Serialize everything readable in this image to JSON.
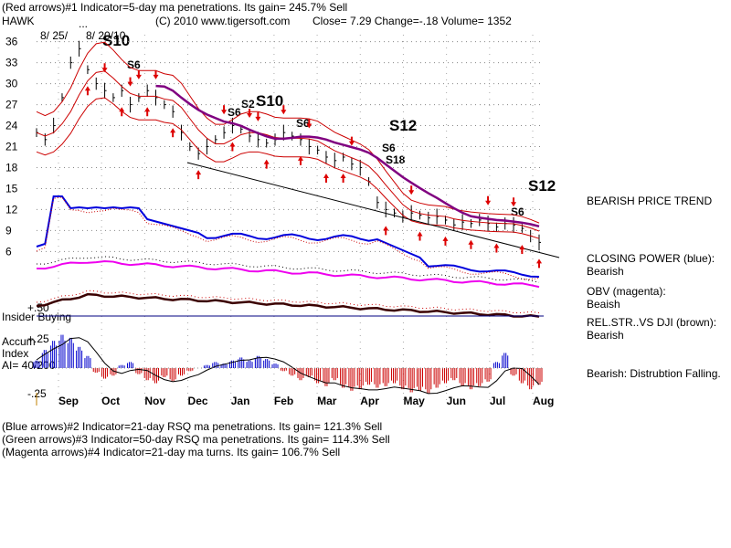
{
  "header": {
    "line1": "(Red arrows)#1 Indicator=5-day ma penetrations.  Its gain= 245.7% Sell",
    "line2_left": "HAWK",
    "line2_copy": "(C) 2010 www.tigersoft.com",
    "line2_close": "Close=  7.29   Change=-.18  Volume= 1352"
  },
  "footer": [
    "(Blue arrows)#2 Indicator=21-day RSQ ma penetrations.  Its gain= 121.3% Sell",
    "(Green arrows)#3 Indicator=50-day RSQ ma penetrations.  Its gain= 114.3% Sell",
    "(Magenta arrows)#4 Indicator=21-day ma turns.  Its gain= 106.7% Sell"
  ],
  "right_panel": {
    "trend": "BEARISH PRICE TREND",
    "cp_title": "CLOSING POWER (blue):",
    "cp_value": "Bearish",
    "obv_title": "OBV (magenta):",
    "obv_value": "Beaish",
    "rel_title": "REL.STR..VS DJI (brown):",
    "rel_value": "Bearish",
    "accum_note": "Bearish: Distrubtion Falling."
  },
  "left_labels": {
    "insider": "Insider Buying",
    "plus50": "+.50",
    "plus25": "+.25",
    "minus25": "-.25",
    "accum": "Accum",
    "index": "Index",
    "ai": "AI= 40/200"
  },
  "annotations": {
    "date1": "8/ 25/",
    "date2": "8/ 20/10",
    "dots": "...",
    "s10_a": "S10",
    "s10_b": "S10",
    "s12_a": "S12",
    "s12_b": "S12",
    "s6": "S6",
    "s2": "S2",
    "s18": "S18"
  },
  "chart_data": {
    "type": "line",
    "ylim": [
      5,
      37
    ],
    "y_ticks": [
      "36",
      "33",
      "30",
      "27",
      "24",
      "21",
      "18",
      "15",
      "12",
      "9",
      "6"
    ],
    "x_ticks": [
      "Sep",
      "Oct",
      "Nov",
      "Dec",
      "Jan",
      "Feb",
      "Mar",
      "Apr",
      "May",
      "Jun",
      "Jul",
      "Aug"
    ],
    "price": [
      23,
      22,
      24,
      28,
      33,
      35,
      32,
      30,
      29,
      28,
      29,
      27,
      28,
      29,
      28,
      27,
      26,
      23,
      21,
      20,
      21,
      22,
      23,
      24,
      23.5,
      22.5,
      22,
      21.5,
      22,
      23,
      22.5,
      22,
      21,
      20.5,
      19.5,
      19,
      19.5,
      18.5,
      18,
      16,
      13,
      12,
      11.5,
      11,
      11.5,
      11.2,
      10.8,
      11,
      10.5,
      9.8,
      10.2,
      10,
      10.5,
      10,
      9.5,
      10,
      9.8,
      9.3,
      8.2,
      7.3
    ],
    "series": [
      {
        "name": "CLOSING POWER (blue)",
        "color": "#0000dd"
      },
      {
        "name": "OBV (magenta)",
        "color": "#ee00ee"
      },
      {
        "name": "REL.STR..VS DJI (brown)",
        "color": "#3b0000"
      }
    ],
    "accum_range": [
      -0.3,
      0.3
    ],
    "accum_values": [
      0.05,
      0.12,
      0.18,
      0.22,
      0.2,
      0.14,
      0.08,
      -0.03,
      -0.07,
      -0.05,
      0.02,
      0.04,
      -0.04,
      -0.08,
      -0.1,
      -0.06,
      -0.09,
      -0.05,
      -0.02,
      0.0,
      0.02,
      0.04,
      0.03,
      0.05,
      0.07,
      0.05,
      0.08,
      0.06,
      0.03,
      -0.02,
      -0.05,
      -0.08,
      -0.06,
      -0.1,
      -0.12,
      -0.08,
      -0.13,
      -0.15,
      -0.14,
      -0.11,
      -0.13,
      -0.12,
      -0.1,
      -0.14,
      -0.16,
      -0.15,
      -0.17,
      -0.13,
      -0.1,
      -0.08,
      -0.12,
      -0.14,
      -0.12,
      -0.09,
      0.04,
      0.1,
      -0.05,
      -0.1,
      -0.14,
      -0.11
    ]
  }
}
